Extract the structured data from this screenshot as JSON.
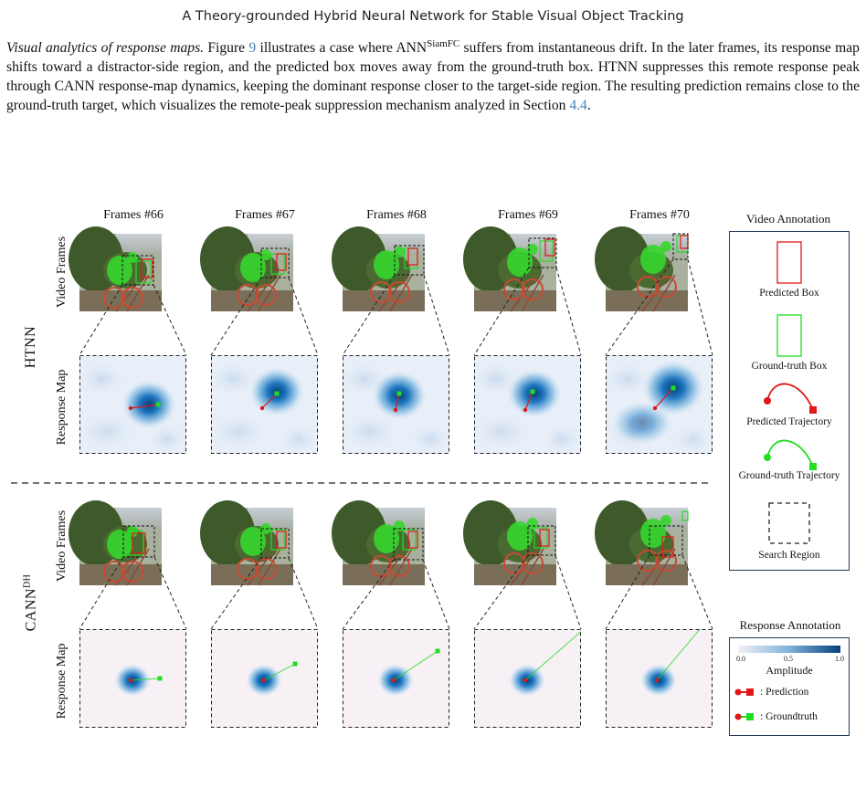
{
  "header": {
    "running_title": "A Theory-grounded Hybrid Neural Network for Stable Visual Object Tracking"
  },
  "paragraph": {
    "heading": "Visual analytics of response maps.",
    "t1": "Figure ",
    "fig_ref": "9",
    "t2": " illustrates a case where ANN",
    "sup": "SiamFC",
    "t3": " suffers from instantaneous drift. In the later frames, its response map shifts toward a distractor-side region, and the predicted box moves away from the ground-truth box. HTNN suppresses this remote response peak through CANN response-map dynamics, keeping the dominant response closer to the target-side region. The resulting prediction remains close to the ground-truth target, which visualizes the remote-peak suppression mechanism analyzed in Section ",
    "sec_ref": "4.4",
    "t4": "."
  },
  "figure": {
    "frame_headers": [
      "Frames #66",
      "Frames #67",
      "Frames #68",
      "Frames #69",
      "Frames #70"
    ],
    "row_labels": {
      "video": "Video Frames",
      "response": "Response Map"
    },
    "groups": {
      "top": "HTNN",
      "bottom_main": "CANN",
      "bottom_sup": "DH"
    },
    "video_annotation": {
      "title": "Video Annotation",
      "predicted_box": "Predicted Box",
      "groundtruth_box": "Ground-truth Box",
      "predicted_trajectory": "Predicted Trajectory",
      "groundtruth_trajectory": "Ground-truth Trajectory",
      "search_region": "Search Region"
    },
    "response_annotation": {
      "title": "Response Annotation",
      "colorbar_label": "Amplitude",
      "colorbar_ticks": [
        "0.0",
        "0.5",
        "1.0"
      ],
      "prediction": ": Prediction",
      "groundtruth": ": Groundtruth"
    },
    "colors": {
      "predicted": "#e01818",
      "groundtruth": "#22dd22",
      "response_peak": "#0a4f8a",
      "legend_border": "#1f3b5c"
    }
  }
}
